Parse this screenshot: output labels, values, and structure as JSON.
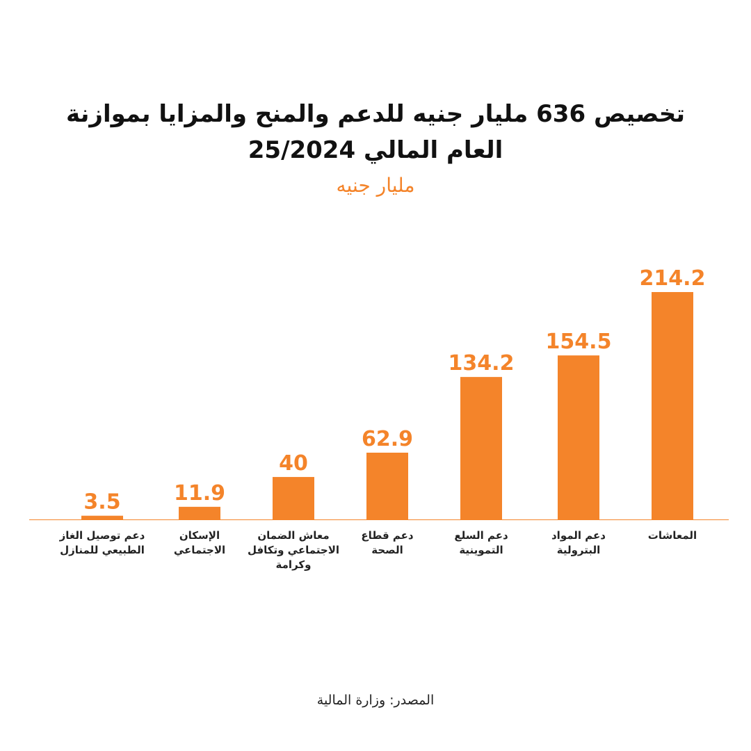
{
  "title_lines": [
    "تخصيص 636 مليار جنيه للدعم والمنح والمزايا بموازنة",
    "العام المالي 25/2024"
  ],
  "unit_label": "مليار جنيه",
  "source": "المصدر: وزارة المالية",
  "colors": {
    "bar": "#f4842a",
    "value_label": "#f4842a",
    "axis": "#f4842a",
    "title": "#111111"
  },
  "chart_data": {
    "type": "bar",
    "title": "تخصيص 636 مليار جنيه للدعم والمنح والمزايا بموازنة العام المالي 25/2024",
    "subtitle": "مليار جنيه",
    "categories": [
      [
        "دعم توصيل الغاز",
        "الطبيعي للمنازل"
      ],
      [
        "الإسكان",
        "الاجتماعي"
      ],
      [
        "معاش الضمان",
        "الاجتماعي وتكافل",
        "وكرامة"
      ],
      [
        "دعم قطاع",
        "الصحة"
      ],
      [
        "دعم السلع",
        "التموينية"
      ],
      [
        "دعم المواد",
        "البترولية"
      ],
      [
        "المعاشات"
      ]
    ],
    "values": [
      3.5,
      11.9,
      40,
      62.9,
      134.2,
      154.5,
      214.2
    ],
    "value_labels": [
      "3.5",
      "11.9",
      "40",
      "62.9",
      "134.2",
      "154.5",
      "214.2"
    ],
    "ylim": [
      0,
      214.2
    ],
    "grid": false,
    "legend": "none"
  }
}
